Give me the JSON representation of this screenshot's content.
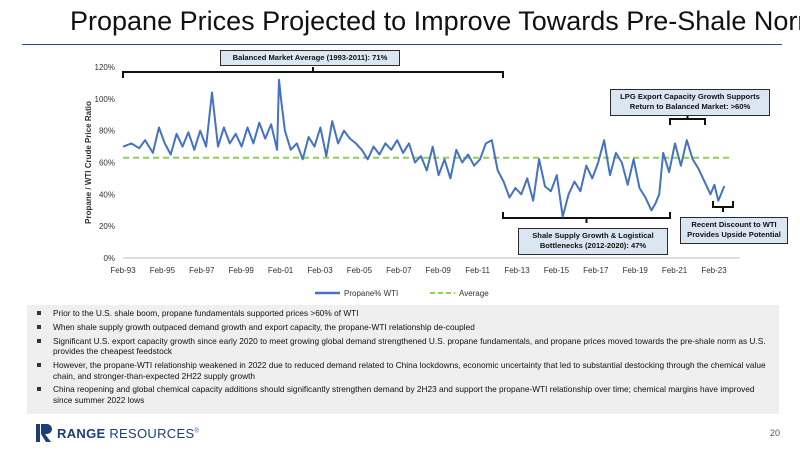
{
  "slide": {
    "title": "Propane Prices Projected to Improve Towards Pre-Shale Norms",
    "page_number": "20",
    "logo": {
      "name": "RANGE",
      "rest": " RESOURCES",
      "mark": "®"
    }
  },
  "callouts": {
    "balanced": "Balanced Market Average (1993-2011): 71%",
    "lpg": "LPG Export Capacity Growth Supports Return to Balanced Market: >60%",
    "shale": "Shale Supply Growth & Logistical Bottlenecks (2012-2020): 47%",
    "recent": "Recent Discount to WTI Provides Upside Potential"
  },
  "bullets": [
    "Prior to the U.S. shale boom, propane fundamentals supported prices >60% of WTI",
    "When shale supply growth outpaced demand growth and export capacity, the propane-WTI relationship de-coupled",
    "Significant U.S. export capacity growth since early 2020 to meet growing global demand strengthened U.S. propane fundamentals, and propane prices moved towards the pre-shale norm as U.S. provides the cheapest feedstock",
    "However, the propane-WTI relationship weakened in 2022 due to reduced demand related to China lockdowns, economic uncertainty that led to substantial destocking through the chemical value chain, and stronger-than-expected 2H22 supply growth",
    "China reopening and global chemical capacity additions should significantly strengthen demand by 2H23 and support the propane-WTI relationship over time; chemical margins have improved since summer 2022 lows"
  ],
  "chart_data": {
    "type": "line",
    "ylabel": "Propane / WTI Crude Price Ratio",
    "xlabel": "",
    "ylim": [
      0,
      120
    ],
    "y_ticks": [
      0,
      20,
      40,
      60,
      80,
      100,
      120
    ],
    "y_tick_labels": [
      "0%",
      "20%",
      "40%",
      "60%",
      "80%",
      "100%",
      "120%"
    ],
    "x_range": [
      1993.08,
      2024.4
    ],
    "x_ticks": [
      1993.08,
      1995.08,
      1997.08,
      1999.08,
      2001.08,
      2003.08,
      2005.08,
      2007.08,
      2009.08,
      2011.08,
      2013.08,
      2015.08,
      2017.08,
      2019.08,
      2021.08,
      2023.08
    ],
    "x_tick_labels": [
      "Feb-93",
      "Feb-95",
      "Feb-97",
      "Feb-99",
      "Feb-01",
      "Feb-03",
      "Feb-05",
      "Feb-07",
      "Feb-09",
      "Feb-11",
      "Feb-13",
      "Feb-15",
      "Feb-17",
      "Feb-19",
      "Feb-21",
      "Feb-23"
    ],
    "legend_position": "bottom",
    "grid": false,
    "series": [
      {
        "name": "Propane% WTI",
        "color": "#4472c4",
        "x": [
          1993.1,
          1993.5,
          1993.9,
          1994.2,
          1994.6,
          1994.9,
          1995.2,
          1995.5,
          1995.8,
          1996.1,
          1996.4,
          1996.7,
          1997.0,
          1997.3,
          1997.6,
          1997.9,
          1998.2,
          1998.5,
          1998.8,
          1999.1,
          1999.4,
          1999.7,
          2000.0,
          2000.3,
          2000.6,
          2000.9,
          2001.0,
          2001.1,
          2001.3,
          2001.6,
          2001.9,
          2002.2,
          2002.5,
          2002.8,
          2003.1,
          2003.4,
          2003.7,
          2004.0,
          2004.3,
          2004.6,
          2004.9,
          2005.2,
          2005.5,
          2005.8,
          2006.1,
          2006.4,
          2006.7,
          2007.0,
          2007.3,
          2007.6,
          2007.9,
          2008.2,
          2008.5,
          2008.8,
          2009.1,
          2009.4,
          2009.7,
          2010.0,
          2010.3,
          2010.6,
          2010.9,
          2011.2,
          2011.5,
          2011.8,
          2012.1,
          2012.4,
          2012.7,
          2013.0,
          2013.3,
          2013.6,
          2013.9,
          2014.2,
          2014.5,
          2014.8,
          2015.1,
          2015.4,
          2015.7,
          2016.0,
          2016.3,
          2016.6,
          2016.9,
          2017.2,
          2017.5,
          2017.8,
          2018.1,
          2018.4,
          2018.7,
          2019.0,
          2019.3,
          2019.6,
          2019.9,
          2020.1,
          2020.3,
          2020.5,
          2020.8,
          2021.1,
          2021.4,
          2021.7,
          2022.0,
          2022.3,
          2022.6,
          2022.9,
          2023.1,
          2023.3,
          2023.6
        ],
        "values": [
          70,
          72,
          69,
          74,
          66,
          82,
          72,
          65,
          78,
          70,
          79,
          68,
          80,
          70,
          104,
          70,
          82,
          72,
          78,
          70,
          82,
          72,
          85,
          75,
          84,
          68,
          112,
          100,
          80,
          68,
          72,
          62,
          76,
          70,
          82,
          64,
          86,
          72,
          80,
          75,
          72,
          68,
          62,
          70,
          65,
          72,
          68,
          74,
          66,
          72,
          60,
          64,
          55,
          70,
          52,
          62,
          50,
          68,
          60,
          65,
          58,
          62,
          72,
          74,
          55,
          48,
          38,
          44,
          40,
          50,
          36,
          62,
          45,
          42,
          52,
          26,
          40,
          48,
          42,
          58,
          50,
          60,
          74,
          52,
          66,
          60,
          46,
          62,
          44,
          38,
          30,
          34,
          40,
          66,
          54,
          72,
          58,
          74,
          62,
          56,
          48,
          40,
          46,
          36,
          45
        ]
      },
      {
        "name": "Average",
        "color": "#92d050",
        "x": [
          1993.08,
          2024.0
        ],
        "values": [
          63,
          63
        ]
      }
    ]
  }
}
